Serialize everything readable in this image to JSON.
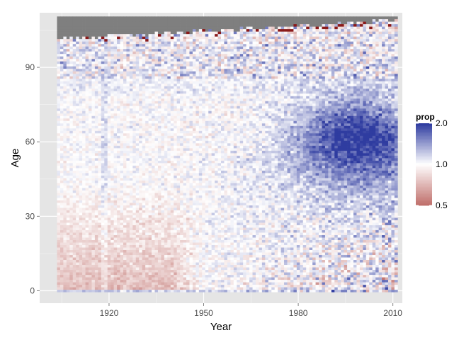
{
  "chart_data": {
    "type": "heatmap",
    "title": "",
    "xlabel": "Year",
    "ylabel": "Age",
    "xlim": [
      1898,
      2013
    ],
    "ylim": [
      -5,
      112
    ],
    "x_ticks": [
      1920,
      1950,
      1980,
      2010
    ],
    "y_ticks": [
      0,
      30,
      60,
      90
    ],
    "x_tick_labels": [
      "1920",
      "1950",
      "1980",
      "2010"
    ],
    "y_tick_labels": [
      "0",
      "30",
      "60",
      "90"
    ],
    "data_extent": {
      "year": [
        1904,
        2011
      ],
      "age": [
        0,
        110
      ]
    },
    "cell_size": {
      "year": 1,
      "age": 1
    },
    "missing_color": "#7f7f7f",
    "grid": true,
    "panel_background": "#e5e5e5",
    "legend": {
      "title": "prop",
      "position": "right",
      "scale": "log",
      "breaks": [
        2.0,
        1.0,
        0.5
      ],
      "break_labels": [
        "2.0",
        "1.0",
        "0.5"
      ],
      "colors": {
        "low": "#c0706c",
        "mid": "#ffffff",
        "high": "#2f3ca0"
      },
      "low_value": 0.5,
      "mid_value": 1.0,
      "high_value": 2.0
    }
  }
}
